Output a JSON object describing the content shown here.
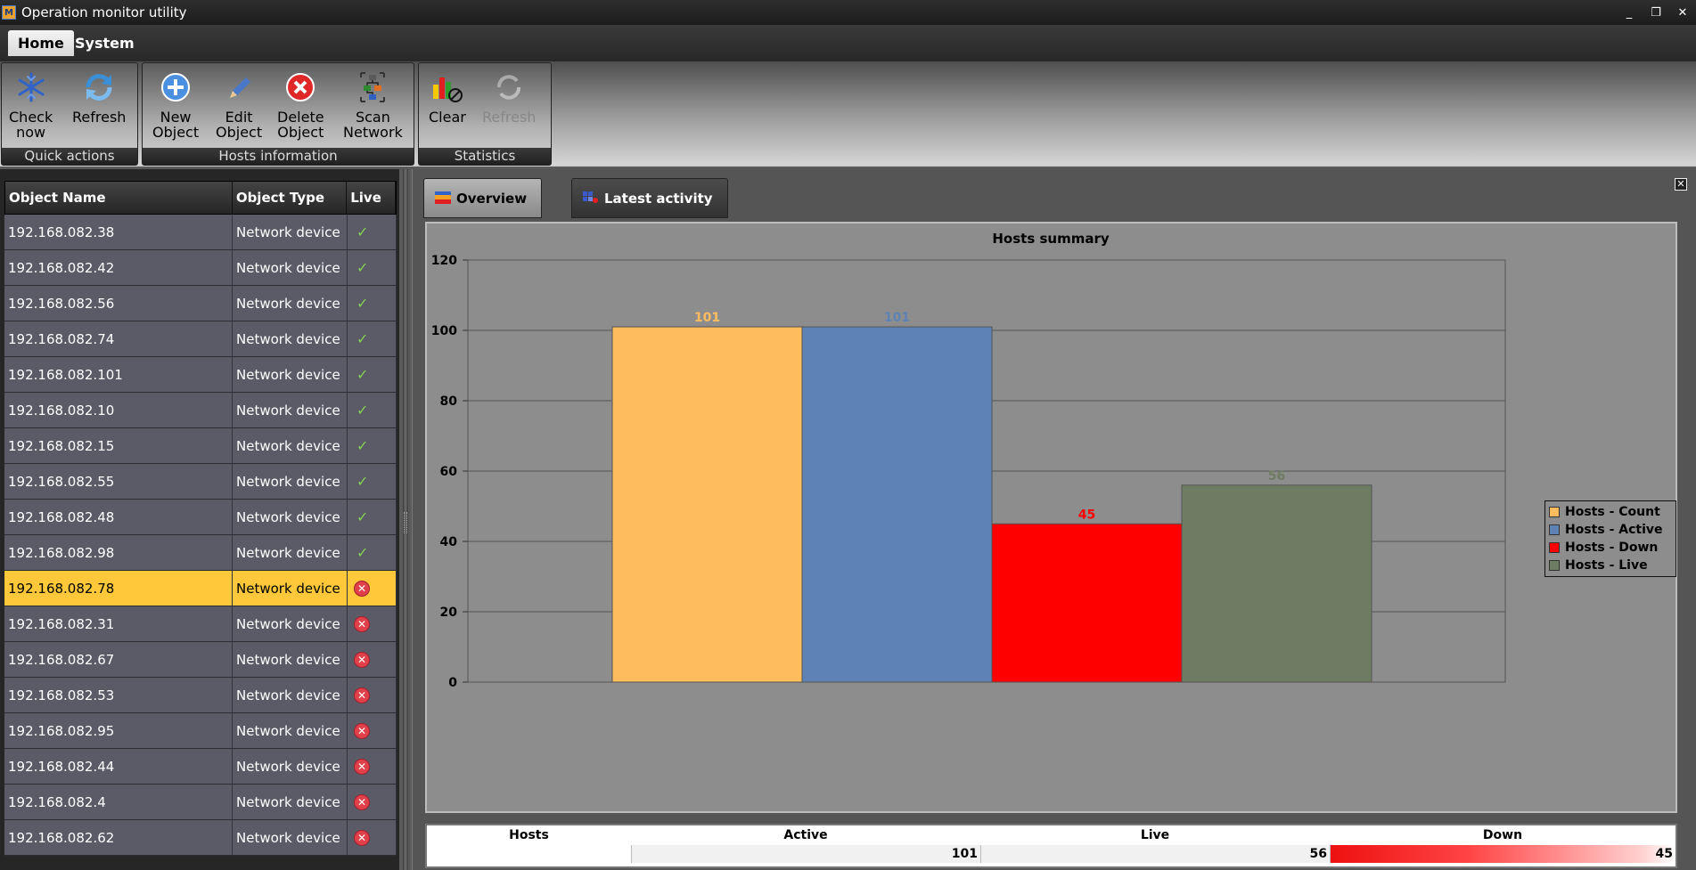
{
  "window": {
    "title": "Operation monitor utility",
    "controls": [
      "_",
      "❐",
      "✕"
    ]
  },
  "ribbon_tabs": [
    "Home",
    "System"
  ],
  "ribbon": {
    "quick_actions": {
      "label": "Quick actions",
      "check_now": [
        "Check",
        "now"
      ],
      "refresh": "Refresh"
    },
    "hosts_information": {
      "label": "Hosts information",
      "new_object": [
        "New",
        "Object"
      ],
      "edit_object": [
        "Edit",
        "Object"
      ],
      "delete_object": [
        "Delete",
        "Object"
      ],
      "scan_network": [
        "Scan",
        "Network"
      ]
    },
    "statistics": {
      "label": "Statistics",
      "clear": "Clear",
      "refresh": "Refresh"
    }
  },
  "grid": {
    "columns": [
      "Object Name",
      "Object Type",
      "Live"
    ],
    "rows": [
      {
        "name": "192.168.082.38",
        "type": "Network device",
        "live": "ok"
      },
      {
        "name": "192.168.082.42",
        "type": "Network device",
        "live": "ok"
      },
      {
        "name": "192.168.082.56",
        "type": "Network device",
        "live": "ok"
      },
      {
        "name": "192.168.082.74",
        "type": "Network device",
        "live": "ok"
      },
      {
        "name": "192.168.082.101",
        "type": "Network device",
        "live": "ok"
      },
      {
        "name": "192.168.082.10",
        "type": "Network device",
        "live": "ok"
      },
      {
        "name": "192.168.082.15",
        "type": "Network device",
        "live": "ok"
      },
      {
        "name": "192.168.082.55",
        "type": "Network device",
        "live": "ok"
      },
      {
        "name": "192.168.082.48",
        "type": "Network device",
        "live": "ok"
      },
      {
        "name": "192.168.082.98",
        "type": "Network device",
        "live": "ok"
      },
      {
        "name": "192.168.082.78",
        "type": "Network device",
        "live": "down",
        "selected": true
      },
      {
        "name": "192.168.082.31",
        "type": "Network device",
        "live": "down"
      },
      {
        "name": "192.168.082.67",
        "type": "Network device",
        "live": "down"
      },
      {
        "name": "192.168.082.53",
        "type": "Network device",
        "live": "down"
      },
      {
        "name": "192.168.082.95",
        "type": "Network device",
        "live": "down"
      },
      {
        "name": "192.168.082.44",
        "type": "Network device",
        "live": "down"
      },
      {
        "name": "192.168.082.4",
        "type": "Network device",
        "live": "down"
      },
      {
        "name": "192.168.082.62",
        "type": "Network device",
        "live": "down"
      }
    ]
  },
  "content_tabs": [
    "Overview",
    "Latest activity"
  ],
  "chart_data": {
    "type": "bar",
    "title": "Hosts summary",
    "xlabel": "",
    "ylabel": "",
    "ylim": [
      0,
      120
    ],
    "yticks": [
      0,
      20,
      40,
      60,
      80,
      100,
      120
    ],
    "grid": true,
    "legend_position": "right",
    "series": [
      {
        "name": "Hosts - Count",
        "values": [
          101
        ],
        "color": "#fdbd5e"
      },
      {
        "name": "Hosts - Active",
        "values": [
          101
        ],
        "color": "#5e82b4"
      },
      {
        "name": "Hosts - Down",
        "values": [
          45
        ],
        "color": "#ff0000"
      },
      {
        "name": "Hosts - Live",
        "values": [
          56
        ],
        "color": "#6d7c62"
      }
    ],
    "label_colors": [
      "#fdbd5e",
      "#5e82b4",
      "#ff0000",
      "#6d7c62"
    ]
  },
  "summary": {
    "headers": [
      "Hosts",
      "Active",
      "Live",
      "Down"
    ],
    "values": [
      "",
      "101",
      "56",
      "45"
    ]
  }
}
